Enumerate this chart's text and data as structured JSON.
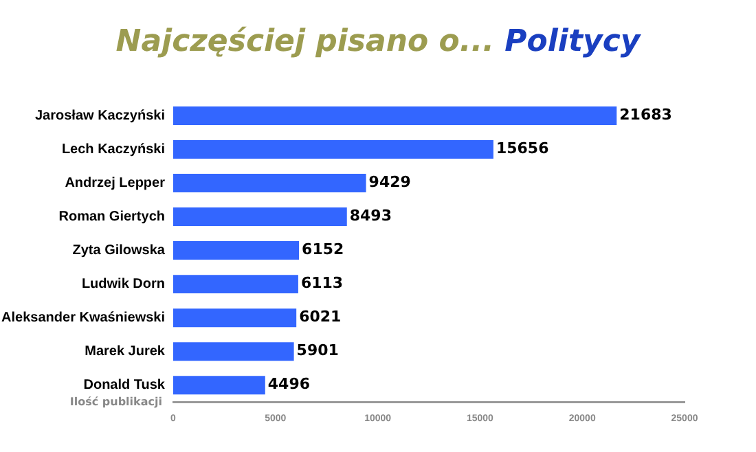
{
  "chart_data": {
    "type": "bar",
    "orientation": "horizontal",
    "title": "Najczęściej pisano o... Politycy",
    "xlabel": "Ilość publikacji",
    "categories": [
      "Jarosław Kaczyński",
      "Lech Kaczyński",
      "Andrzej Lepper",
      "Roman Giertych",
      "Zyta Gilowska",
      "Ludwik Dorn",
      "Aleksander Kwaśniewski",
      "Marek Jurek",
      "Donald Tusk"
    ],
    "values": [
      21683,
      15656,
      9429,
      8493,
      6152,
      6113,
      6021,
      5901,
      4496
    ],
    "color": "#3366ff",
    "xlim": [
      0,
      25000
    ],
    "xticks": [
      0,
      5000,
      10000,
      15000,
      20000,
      25000
    ],
    "grid": false,
    "legend": false,
    "data_labels": true
  }
}
